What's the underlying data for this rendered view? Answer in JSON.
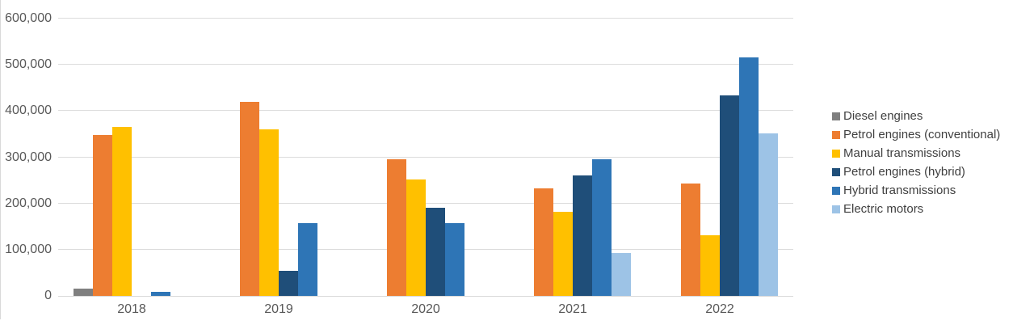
{
  "chart_data": {
    "type": "bar",
    "title": "",
    "xlabel": "",
    "ylabel": "",
    "categories": [
      "2018",
      "2019",
      "2020",
      "2021",
      "2022"
    ],
    "series": [
      {
        "name": "Diesel engines",
        "color": "#7F7F7F",
        "values": [
          15000,
          0,
          0,
          0,
          0
        ]
      },
      {
        "name": "Petrol engines (conventional)",
        "color": "#ED7D31",
        "values": [
          348000,
          420000,
          295000,
          233000,
          243000
        ]
      },
      {
        "name": "Manual transmissions",
        "color": "#FFC000",
        "values": [
          365000,
          360000,
          252000,
          182000,
          131000
        ]
      },
      {
        "name": "Petrol engines (hybrid)",
        "color": "#1F4E79",
        "values": [
          0,
          54000,
          190000,
          260000,
          434000
        ]
      },
      {
        "name": "Hybrid transmissions",
        "color": "#2E75B6",
        "values": [
          8000,
          158000,
          158000,
          295000,
          516000
        ]
      },
      {
        "name": "Electric motors",
        "color": "#9DC3E6",
        "values": [
          0,
          0,
          0,
          93000,
          351000
        ]
      }
    ],
    "ylim": [
      0,
      600000
    ],
    "ytick_interval": 100000,
    "y_tick_labels": [
      "0",
      "100,000",
      "200,000",
      "300,000",
      "400,000",
      "500,000",
      "600,000"
    ],
    "grid": "horizontal",
    "legend_position": "right"
  },
  "colors": {
    "background": "#FFFFFF",
    "gridline": "#DCDCDC",
    "axis_line": "#D9D9D9",
    "axis_text": "#595959",
    "legend_text": "#404040"
  }
}
